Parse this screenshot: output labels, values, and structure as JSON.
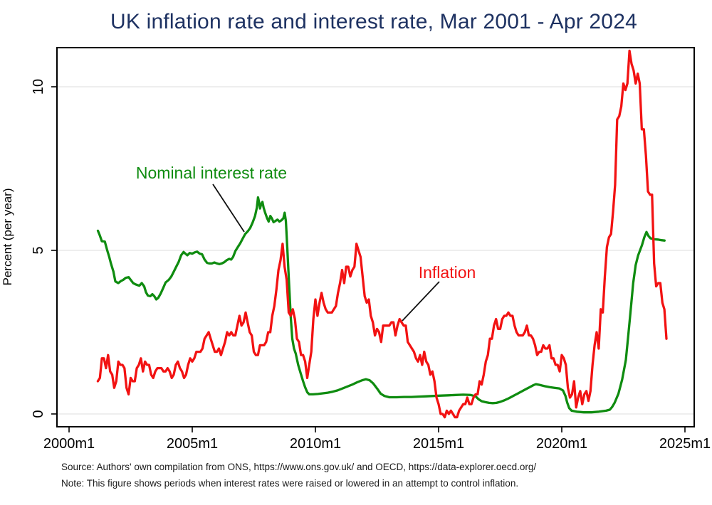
{
  "title": "UK inflation rate and interest rate, Mar 2001 - Apr 2024",
  "source_line": "Source: Authors' own compilation from ONS, https://www.ons.gov.uk/ and OECD, https://data-explorer.oecd.org/",
  "note_line": "Note: This figure shows periods when interest rates were raised or lowered in an attempt to control inflation.",
  "colors": {
    "title": "#1e3262",
    "interest_rate": "#0f8c10",
    "inflation": "#f21212",
    "grid": "#e9e9e9",
    "frame": "#000000",
    "caption_text": "#1b1b1b"
  },
  "annotations": {
    "interest_label": "Nominal interest rate",
    "inflation_label": "Inflation"
  },
  "chart_data": {
    "type": "line",
    "title": "UK inflation rate and interest rate, Mar 2001 - Apr 2024",
    "xlabel": "",
    "ylabel": "Percent (per year)",
    "x_range_years": [
      1999.5,
      2025.4
    ],
    "y_range": [
      -0.4,
      11.2
    ],
    "grid": "horizontal-only",
    "legend": "inline-annotations",
    "x_axis": {
      "ticks": [
        {
          "year": 2000,
          "label": "2000m1"
        },
        {
          "year": 2005,
          "label": "2005m1"
        },
        {
          "year": 2010,
          "label": "2010m1"
        },
        {
          "year": 2015,
          "label": "2015m1"
        },
        {
          "year": 2020,
          "label": "2020m1"
        },
        {
          "year": 2025,
          "label": "2025m1"
        }
      ]
    },
    "y_axis": {
      "label": "Percent (per year)",
      "ticks": [
        0,
        5,
        10
      ]
    },
    "series": [
      {
        "name": "Nominal interest rate",
        "color": "#0f8c10",
        "points": [
          [
            2001.17,
            5.6
          ],
          [
            2001.25,
            5.45
          ],
          [
            2001.33,
            5.28
          ],
          [
            2001.45,
            5.27
          ],
          [
            2001.55,
            5.0
          ],
          [
            2001.63,
            4.8
          ],
          [
            2001.7,
            4.6
          ],
          [
            2001.8,
            4.35
          ],
          [
            2001.88,
            4.05
          ],
          [
            2002.0,
            4.0
          ],
          [
            2002.1,
            4.06
          ],
          [
            2002.2,
            4.1
          ],
          [
            2002.3,
            4.16
          ],
          [
            2002.42,
            4.18
          ],
          [
            2002.5,
            4.1
          ],
          [
            2002.6,
            4.0
          ],
          [
            2002.7,
            3.96
          ],
          [
            2002.85,
            3.92
          ],
          [
            2002.95,
            4.0
          ],
          [
            2003.05,
            3.9
          ],
          [
            2003.12,
            3.72
          ],
          [
            2003.2,
            3.62
          ],
          [
            2003.3,
            3.6
          ],
          [
            2003.38,
            3.66
          ],
          [
            2003.46,
            3.6
          ],
          [
            2003.54,
            3.5
          ],
          [
            2003.62,
            3.55
          ],
          [
            2003.72,
            3.68
          ],
          [
            2003.82,
            3.85
          ],
          [
            2003.92,
            4.02
          ],
          [
            2004.05,
            4.1
          ],
          [
            2004.15,
            4.2
          ],
          [
            2004.25,
            4.35
          ],
          [
            2004.35,
            4.5
          ],
          [
            2004.45,
            4.65
          ],
          [
            2004.55,
            4.85
          ],
          [
            2004.65,
            4.95
          ],
          [
            2004.72,
            4.9
          ],
          [
            2004.8,
            4.85
          ],
          [
            2004.9,
            4.92
          ],
          [
            2005.0,
            4.9
          ],
          [
            2005.1,
            4.94
          ],
          [
            2005.2,
            4.96
          ],
          [
            2005.3,
            4.9
          ],
          [
            2005.4,
            4.88
          ],
          [
            2005.5,
            4.72
          ],
          [
            2005.6,
            4.62
          ],
          [
            2005.7,
            4.6
          ],
          [
            2005.8,
            4.6
          ],
          [
            2005.9,
            4.63
          ],
          [
            2006.0,
            4.6
          ],
          [
            2006.1,
            4.58
          ],
          [
            2006.2,
            4.6
          ],
          [
            2006.3,
            4.64
          ],
          [
            2006.4,
            4.7
          ],
          [
            2006.5,
            4.74
          ],
          [
            2006.58,
            4.72
          ],
          [
            2006.66,
            4.8
          ],
          [
            2006.75,
            4.98
          ],
          [
            2006.85,
            5.1
          ],
          [
            2006.95,
            5.22
          ],
          [
            2007.05,
            5.36
          ],
          [
            2007.15,
            5.5
          ],
          [
            2007.25,
            5.58
          ],
          [
            2007.35,
            5.68
          ],
          [
            2007.45,
            5.85
          ],
          [
            2007.55,
            6.05
          ],
          [
            2007.62,
            6.3
          ],
          [
            2007.67,
            6.62
          ],
          [
            2007.71,
            6.48
          ],
          [
            2007.75,
            6.28
          ],
          [
            2007.8,
            6.42
          ],
          [
            2007.85,
            6.48
          ],
          [
            2007.9,
            6.3
          ],
          [
            2007.96,
            6.15
          ],
          [
            2008.04,
            5.98
          ],
          [
            2008.1,
            5.88
          ],
          [
            2008.17,
            6.05
          ],
          [
            2008.23,
            5.98
          ],
          [
            2008.3,
            5.86
          ],
          [
            2008.38,
            5.9
          ],
          [
            2008.46,
            5.94
          ],
          [
            2008.54,
            5.88
          ],
          [
            2008.62,
            5.92
          ],
          [
            2008.7,
            5.98
          ],
          [
            2008.75,
            6.15
          ],
          [
            2008.8,
            5.9
          ],
          [
            2008.85,
            5.2
          ],
          [
            2008.92,
            4.15
          ],
          [
            2009.0,
            2.95
          ],
          [
            2009.06,
            2.3
          ],
          [
            2009.13,
            2.0
          ],
          [
            2009.2,
            1.85
          ],
          [
            2009.3,
            1.5
          ],
          [
            2009.4,
            1.25
          ],
          [
            2009.5,
            1.0
          ],
          [
            2009.58,
            0.82
          ],
          [
            2009.67,
            0.66
          ],
          [
            2009.75,
            0.6
          ],
          [
            2009.9,
            0.6
          ],
          [
            2010.1,
            0.61
          ],
          [
            2010.3,
            0.63
          ],
          [
            2010.5,
            0.65
          ],
          [
            2010.7,
            0.68
          ],
          [
            2010.9,
            0.72
          ],
          [
            2011.1,
            0.78
          ],
          [
            2011.3,
            0.84
          ],
          [
            2011.5,
            0.9
          ],
          [
            2011.7,
            0.97
          ],
          [
            2011.9,
            1.03
          ],
          [
            2012.05,
            1.06
          ],
          [
            2012.2,
            1.03
          ],
          [
            2012.35,
            0.93
          ],
          [
            2012.5,
            0.78
          ],
          [
            2012.65,
            0.62
          ],
          [
            2012.8,
            0.55
          ],
          [
            2013.0,
            0.51
          ],
          [
            2013.3,
            0.51
          ],
          [
            2013.6,
            0.52
          ],
          [
            2013.9,
            0.52
          ],
          [
            2014.2,
            0.53
          ],
          [
            2014.5,
            0.54
          ],
          [
            2014.8,
            0.55
          ],
          [
            2015.1,
            0.56
          ],
          [
            2015.4,
            0.57
          ],
          [
            2015.7,
            0.58
          ],
          [
            2016.0,
            0.59
          ],
          [
            2016.3,
            0.58
          ],
          [
            2016.5,
            0.54
          ],
          [
            2016.62,
            0.45
          ],
          [
            2016.75,
            0.39
          ],
          [
            2016.9,
            0.36
          ],
          [
            2017.05,
            0.34
          ],
          [
            2017.2,
            0.33
          ],
          [
            2017.35,
            0.34
          ],
          [
            2017.5,
            0.37
          ],
          [
            2017.65,
            0.41
          ],
          [
            2017.8,
            0.46
          ],
          [
            2017.95,
            0.52
          ],
          [
            2018.1,
            0.58
          ],
          [
            2018.25,
            0.64
          ],
          [
            2018.4,
            0.7
          ],
          [
            2018.55,
            0.76
          ],
          [
            2018.7,
            0.82
          ],
          [
            2018.85,
            0.88
          ],
          [
            2018.95,
            0.91
          ],
          [
            2019.1,
            0.89
          ],
          [
            2019.3,
            0.85
          ],
          [
            2019.5,
            0.82
          ],
          [
            2019.7,
            0.8
          ],
          [
            2019.9,
            0.78
          ],
          [
            2020.05,
            0.72
          ],
          [
            2020.15,
            0.55
          ],
          [
            2020.22,
            0.35
          ],
          [
            2020.3,
            0.18
          ],
          [
            2020.4,
            0.1
          ],
          [
            2020.6,
            0.07
          ],
          [
            2020.9,
            0.05
          ],
          [
            2021.2,
            0.05
          ],
          [
            2021.5,
            0.07
          ],
          [
            2021.8,
            0.1
          ],
          [
            2021.95,
            0.13
          ],
          [
            2022.05,
            0.22
          ],
          [
            2022.15,
            0.35
          ],
          [
            2022.3,
            0.62
          ],
          [
            2022.45,
            1.05
          ],
          [
            2022.6,
            1.65
          ],
          [
            2022.7,
            2.4
          ],
          [
            2022.8,
            3.2
          ],
          [
            2022.9,
            4.0
          ],
          [
            2023.0,
            4.55
          ],
          [
            2023.1,
            4.85
          ],
          [
            2023.25,
            5.15
          ],
          [
            2023.35,
            5.4
          ],
          [
            2023.44,
            5.56
          ],
          [
            2023.52,
            5.44
          ],
          [
            2023.6,
            5.37
          ],
          [
            2023.75,
            5.34
          ],
          [
            2023.9,
            5.33
          ],
          [
            2024.05,
            5.31
          ],
          [
            2024.17,
            5.3
          ]
        ]
      },
      {
        "name": "Inflation",
        "color": "#f21212",
        "start": 2001.1667,
        "step": 0.08333,
        "start_label": "2001m3",
        "end_label": "2024m4",
        "values": [
          1.0,
          1.1,
          1.7,
          1.7,
          1.4,
          1.8,
          1.3,
          1.2,
          0.8,
          1.0,
          1.6,
          1.5,
          1.5,
          1.4,
          0.8,
          0.6,
          1.1,
          1.0,
          1.0,
          1.4,
          1.5,
          1.7,
          1.3,
          1.6,
          1.5,
          1.5,
          1.2,
          1.1,
          1.3,
          1.4,
          1.4,
          1.4,
          1.3,
          1.3,
          1.4,
          1.3,
          1.1,
          1.2,
          1.5,
          1.6,
          1.4,
          1.3,
          1.1,
          1.2,
          1.5,
          1.7,
          1.6,
          1.7,
          1.9,
          1.9,
          1.9,
          2.0,
          2.3,
          2.4,
          2.5,
          2.3,
          2.1,
          1.9,
          1.9,
          2.0,
          1.8,
          2.0,
          2.2,
          2.5,
          2.4,
          2.5,
          2.4,
          2.4,
          2.7,
          3.0,
          2.7,
          2.8,
          3.1,
          2.8,
          2.5,
          2.4,
          1.9,
          1.8,
          1.8,
          2.1,
          2.1,
          2.1,
          2.2,
          2.5,
          2.5,
          3.0,
          3.3,
          3.8,
          4.4,
          4.7,
          5.2,
          4.5,
          4.1,
          3.1,
          3.0,
          3.2,
          2.9,
          2.3,
          2.2,
          1.8,
          1.8,
          1.6,
          1.1,
          1.5,
          1.9,
          2.9,
          3.5,
          3.0,
          3.4,
          3.7,
          3.4,
          3.2,
          3.1,
          3.1,
          3.1,
          3.2,
          3.3,
          3.7,
          4.0,
          4.4,
          4.0,
          4.5,
          4.5,
          4.2,
          4.4,
          4.5,
          5.2,
          5.0,
          4.8,
          4.2,
          3.6,
          3.4,
          3.5,
          3.0,
          2.8,
          2.4,
          2.6,
          2.5,
          2.2,
          2.7,
          2.7,
          2.7,
          2.7,
          2.8,
          2.8,
          2.4,
          2.7,
          2.9,
          2.8,
          2.7,
          2.7,
          2.2,
          2.1,
          2.0,
          1.9,
          1.7,
          1.6,
          1.8,
          1.5,
          1.9,
          1.6,
          1.5,
          1.2,
          1.3,
          1.0,
          0.5,
          0.3,
          0.0,
          0.0,
          -0.1,
          0.1,
          0.0,
          0.1,
          0.0,
          -0.1,
          -0.1,
          0.1,
          0.2,
          0.3,
          0.3,
          0.5,
          0.3,
          0.3,
          0.5,
          0.6,
          0.6,
          1.0,
          0.9,
          1.2,
          1.6,
          1.8,
          2.3,
          2.3,
          2.7,
          2.9,
          2.6,
          2.6,
          2.9,
          3.0,
          3.0,
          3.1,
          3.0,
          3.0,
          2.7,
          2.5,
          2.4,
          2.4,
          2.4,
          2.5,
          2.7,
          2.4,
          2.4,
          2.3,
          2.1,
          1.8,
          1.9,
          1.9,
          2.1,
          2.0,
          2.0,
          2.1,
          1.7,
          1.7,
          1.5,
          1.5,
          1.3,
          1.8,
          1.7,
          1.5,
          0.8,
          0.5,
          0.6,
          1.0,
          0.2,
          0.5,
          0.7,
          0.3,
          0.6,
          0.7,
          0.4,
          0.7,
          1.5,
          2.1,
          2.5,
          2.0,
          3.2,
          3.1,
          4.2,
          5.1,
          5.4,
          5.5,
          6.2,
          7.0,
          9.0,
          9.1,
          9.4,
          10.1,
          9.9,
          10.1,
          11.1,
          10.7,
          10.5,
          10.1,
          10.4,
          10.1,
          8.7,
          8.7,
          7.9,
          6.8,
          6.7,
          6.7,
          4.6,
          3.9,
          4.0,
          4.0,
          3.4,
          3.2,
          2.3
        ]
      }
    ]
  }
}
